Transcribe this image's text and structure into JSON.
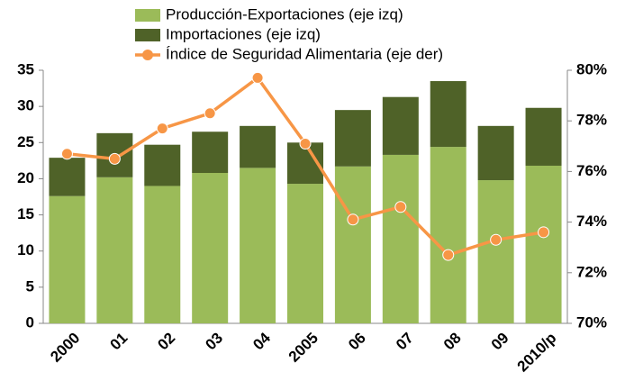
{
  "chart_data": {
    "type": "bar",
    "categories": [
      "2000",
      "01",
      "02",
      "03",
      "04",
      "2005",
      "06",
      "07",
      "08",
      "09",
      "2010/p"
    ],
    "series": [
      {
        "name": "Producción-Exportaciones (eje izq)",
        "color": "#9bbb59",
        "values": [
          17.6,
          20.2,
          19.0,
          20.8,
          21.5,
          19.3,
          21.7,
          23.3,
          24.4,
          19.8,
          21.8
        ]
      },
      {
        "name": "Importaciones (eje izq)",
        "color": "#4f6228",
        "values": [
          5.3,
          6.1,
          5.7,
          5.7,
          5.8,
          5.7,
          7.8,
          8.0,
          9.1,
          7.5,
          8.0
        ]
      },
      {
        "name": "Índice de Seguridad Alimentaria (eje der)",
        "color": "#f79646",
        "type": "line",
        "axis": "y2",
        "values": [
          76.7,
          76.5,
          77.7,
          78.3,
          79.7,
          77.1,
          74.1,
          74.6,
          72.7,
          73.3,
          73.6
        ]
      }
    ],
    "ylim": [
      0,
      35
    ],
    "yticks": [
      0,
      5,
      10,
      15,
      20,
      25,
      30,
      35
    ],
    "y2lim": [
      70,
      80
    ],
    "y2ticks": [
      {
        "value": 70,
        "label": "70%"
      },
      {
        "value": 72,
        "label": "72%"
      },
      {
        "value": 74,
        "label": "74%"
      },
      {
        "value": 76,
        "label": "76%"
      },
      {
        "value": 78,
        "label": "78%"
      },
      {
        "value": 80,
        "label": "80%"
      }
    ]
  }
}
